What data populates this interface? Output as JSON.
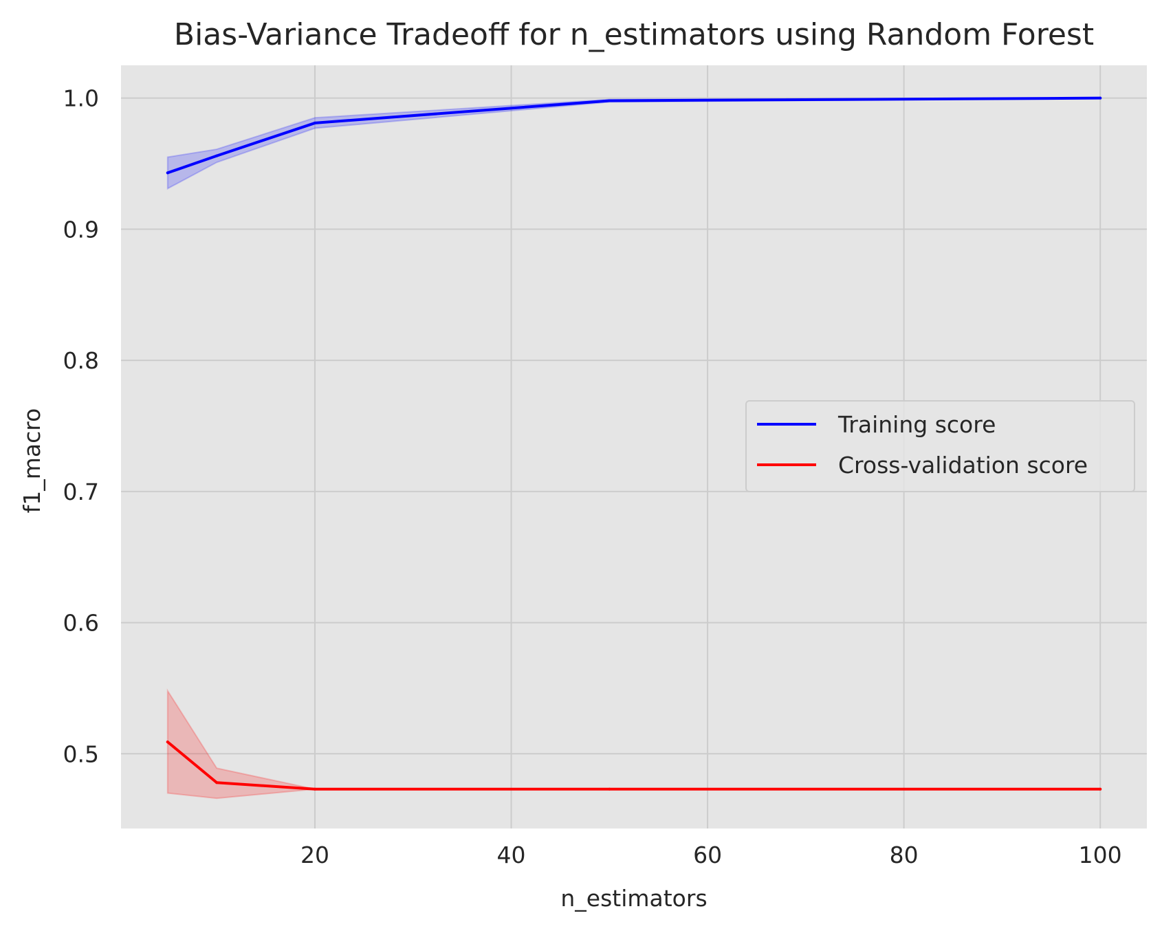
{
  "chart_data": {
    "type": "line",
    "title": "Bias-Variance Tradeoff for n_estimators using Random Forest",
    "xlabel": "n_estimators",
    "ylabel": "f1_macro",
    "xlim": [
      0.25,
      104.75
    ],
    "ylim": [
      0.443,
      1.025
    ],
    "xticks": [
      20,
      40,
      60,
      80,
      100
    ],
    "yticks": [
      0.5,
      0.6,
      0.7,
      0.8,
      0.9,
      1.0
    ],
    "xtick_labels": [
      "20",
      "40",
      "60",
      "80",
      "100"
    ],
    "ytick_labels": [
      "0.5",
      "0.6",
      "0.7",
      "0.8",
      "0.9",
      "1.0"
    ],
    "grid": true,
    "background": "#e5e5e5",
    "legend_position": "center-right",
    "series": [
      {
        "name": "Training score",
        "color": "#0000ff",
        "x": [
          5,
          10,
          20,
          50,
          100
        ],
        "y": [
          0.943,
          0.956,
          0.981,
          0.998,
          1.0
        ],
        "band_lower": [
          0.931,
          0.951,
          0.977,
          0.997,
          1.0
        ],
        "band_upper": [
          0.955,
          0.961,
          0.985,
          0.999,
          1.0
        ]
      },
      {
        "name": "Cross-validation score",
        "color": "#ff0000",
        "x": [
          5,
          10,
          20,
          50,
          100
        ],
        "y": [
          0.509,
          0.478,
          0.473,
          0.473,
          0.473
        ],
        "band_lower": [
          0.47,
          0.466,
          0.473,
          0.473,
          0.473
        ],
        "band_upper": [
          0.548,
          0.489,
          0.473,
          0.473,
          0.473
        ]
      }
    ]
  }
}
